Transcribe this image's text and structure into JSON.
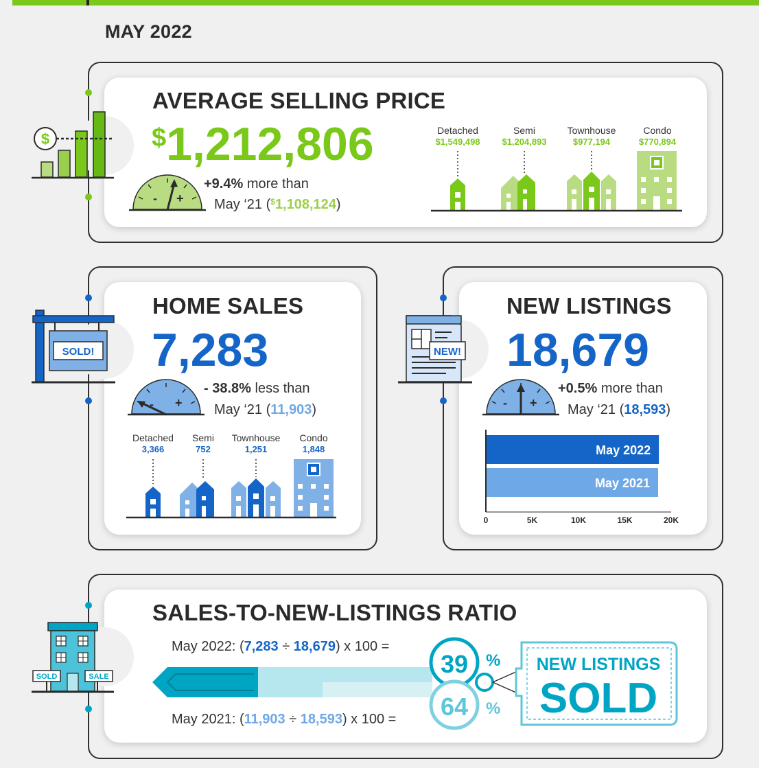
{
  "page": {
    "title": "MAY 2022"
  },
  "colors": {
    "green": "#7ac81a",
    "lightgreen": "#b9dc83",
    "blue": "#1565c8",
    "lightblue": "#7fb0e6",
    "teal": "#00a5c4",
    "lightteal": "#b6e6ee"
  },
  "price": {
    "heading": "AVERAGE SELLING PRICE",
    "currency": "$",
    "value": "1,212,806",
    "change": "+9.4%",
    "change_text": "more than",
    "compare_prefix": "May ‘21 (",
    "compare_currency": "$",
    "compare_value": "1,108,124",
    "compare_suffix": ")",
    "gauge_minus": "-",
    "gauge_plus": "+",
    "icon_dollar": "$",
    "types": [
      {
        "label": "Detached",
        "value": "$1,549,498"
      },
      {
        "label": "Semi",
        "value": "$1,204,893"
      },
      {
        "label": "Townhouse",
        "value": "$977,194"
      },
      {
        "label": "Condo",
        "value": "$770,894"
      }
    ]
  },
  "sales": {
    "heading": "HOME SALES",
    "value": "7,283",
    "change": "- 38.8%",
    "change_text": "less than",
    "compare_prefix": "May ‘21 (",
    "compare_value": "11,903",
    "compare_suffix": ")",
    "gauge_minus": "-",
    "gauge_plus": "+",
    "sign_text": "SOLD!",
    "types": [
      {
        "label": "Detached",
        "value": "3,366"
      },
      {
        "label": "Semi",
        "value": "752"
      },
      {
        "label": "Townhouse",
        "value": "1,251"
      },
      {
        "label": "Condo",
        "value": "1,848"
      }
    ]
  },
  "listings": {
    "heading": "NEW LISTINGS",
    "value": "18,679",
    "change": "+0.5%",
    "change_text": "more than",
    "compare_prefix": "May ‘21 (",
    "compare_value": "18,593",
    "compare_suffix": ")",
    "gauge_minus": "-",
    "gauge_plus": "+",
    "doc_badge": "NEW!"
  },
  "chart_data": {
    "type": "bar",
    "orientation": "horizontal",
    "categories": [
      "May 2022",
      "May 2021"
    ],
    "values": [
      18679,
      18593
    ],
    "xlim": [
      0,
      20000
    ],
    "xticks": [
      "0",
      "5K",
      "10K",
      "15K",
      "20K"
    ],
    "colors": [
      "#1565c8",
      "#6fa8e6"
    ]
  },
  "ratio": {
    "heading": "SALES-TO-NEW-LISTINGS RATIO",
    "line1_prefix": "May 2022: (",
    "line1_a": "7,283",
    "line1_div": " ÷ ",
    "line1_b": "18,679",
    "line1_suffix": ") x 100 =",
    "line2_prefix": "May 2021: (",
    "line2_a": "11,903",
    "line2_div": " ÷ ",
    "line2_b": "18,593",
    "line2_suffix": ") x 100 =",
    "value_2022": "39",
    "value_2021": "64",
    "pct": "%",
    "tag_top": "NEW LISTINGS",
    "tag_bottom": "SOLD",
    "building_left_sign": "SOLD",
    "building_right_sign": "SALE"
  }
}
